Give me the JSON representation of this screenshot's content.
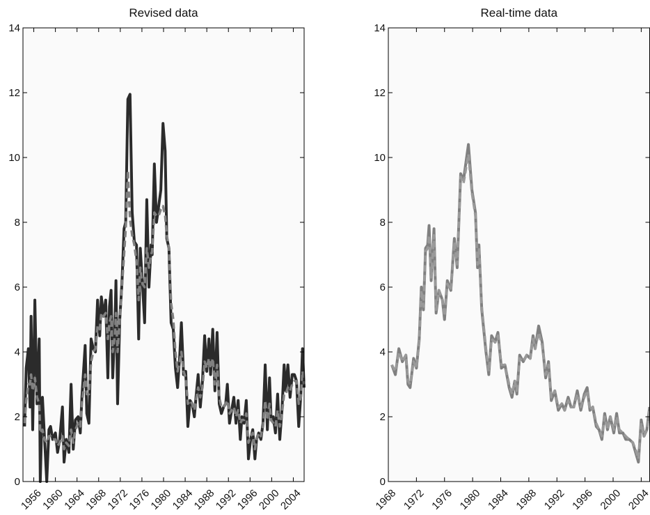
{
  "chart_data": [
    {
      "type": "line",
      "title": "Revised data",
      "x": [
        1954.3,
        1954.6,
        1955.0,
        1955.3,
        1955.5,
        1955.8,
        1956.2,
        1956.6,
        1957.0,
        1957.2,
        1957.6,
        1958.0,
        1958.4,
        1958.8,
        1959.1,
        1959.5,
        1960.0,
        1960.4,
        1960.8,
        1961.3,
        1961.6,
        1962.0,
        1962.5,
        1962.9,
        1963.3,
        1963.7,
        1964.2,
        1964.6,
        1964.9,
        1965.5,
        1965.8,
        1966.2,
        1966.6,
        1967.0,
        1967.4,
        1967.8,
        1968.2,
        1968.5,
        1968.9,
        1969.3,
        1969.7,
        1970.0,
        1970.3,
        1970.6,
        1971.0,
        1971.2,
        1971.5,
        1971.9,
        1972.3,
        1972.7,
        1973.0,
        1973.4,
        1973.8,
        1974.2,
        1974.6,
        1975.0,
        1975.4,
        1975.7,
        1976.1,
        1976.5,
        1976.9,
        1977.3,
        1977.7,
        1977.9,
        1978.3,
        1978.7,
        1979.1,
        1979.5,
        1979.9,
        1980.3,
        1980.6,
        1981.0,
        1981.4,
        1981.8,
        1982.2,
        1982.6,
        1983.0,
        1983.3,
        1983.7,
        1984.1,
        1984.5,
        1984.9,
        1985.3,
        1985.7,
        1986.0,
        1986.4,
        1986.8,
        1987.2,
        1987.6,
        1988.0,
        1988.4,
        1988.7,
        1989.1,
        1989.5,
        1989.9,
        1990.3,
        1990.7,
        1991.1,
        1991.5,
        1991.8,
        1992.2,
        1992.6,
        1993.0,
        1993.4,
        1993.8,
        1994.2,
        1994.5,
        1994.9,
        1995.3,
        1995.7,
        1996.1,
        1996.5,
        1996.9,
        1997.2,
        1997.6,
        1998.0,
        1998.4,
        1998.8,
        1999.2,
        1999.6,
        1999.9,
        2000.3,
        2000.7,
        2001.1,
        2001.5,
        2001.9,
        2002.3,
        2002.6,
        2003.0,
        2003.4,
        2003.8,
        2004.2,
        2004.6,
        2005.0,
        2005.4,
        2005.7,
        2006.0
      ],
      "series": [
        {
          "color": "#2b2b2b",
          "style": "solid",
          "values": [
            1.7,
            3.5,
            4.1,
            2.3,
            5.1,
            1.6,
            5.6,
            2.4,
            4.4,
            0.0,
            2.6,
            1.3,
            0.0,
            1.6,
            1.7,
            1.3,
            1.5,
            0.9,
            1.3,
            2.3,
            0.6,
            1.3,
            0.9,
            3.0,
            1.0,
            1.9,
            2.0,
            1.5,
            2.6,
            4.2,
            2.1,
            1.8,
            4.4,
            4.1,
            4.0,
            5.6,
            4.5,
            5.7,
            5.1,
            5.6,
            3.2,
            5.4,
            5.9,
            3.2,
            4.8,
            6.2,
            2.4,
            5.0,
            6.1,
            7.8,
            8.0,
            11.8,
            11.95,
            8.3,
            7.4,
            7.3,
            4.4,
            7.2,
            6.1,
            4.9,
            8.7,
            6.0,
            7.3,
            7.0,
            9.8,
            8.0,
            8.5,
            9.0,
            11.05,
            10.2,
            7.5,
            7.2,
            4.9,
            4.7,
            3.5,
            2.9,
            3.9,
            4.9,
            3.3,
            3.4,
            1.7,
            2.5,
            2.4,
            2.0,
            2.6,
            3.3,
            2.3,
            3.1,
            4.5,
            3.4,
            4.4,
            3.3,
            4.7,
            2.8,
            4.6,
            2.4,
            2.1,
            2.3,
            2.4,
            3.0,
            1.8,
            2.2,
            2.6,
            1.8,
            2.5,
            1.3,
            2.0,
            1.8,
            2.5,
            0.7,
            1.3,
            1.6,
            0.7,
            1.3,
            1.5,
            1.3,
            1.8,
            3.6,
            1.6,
            3.2,
            1.9,
            2.0,
            1.5,
            2.7,
            1.3,
            2.2,
            3.6,
            2.8,
            3.6,
            2.6,
            3.3,
            3.3,
            3.1,
            1.7,
            2.7,
            4.1,
            2.9
          ]
        },
        {
          "color": "#808080",
          "style": "dashed",
          "values": [
            1.8,
            2.5,
            3.0,
            3.0,
            3.3,
            2.8,
            3.2,
            2.6,
            2.4,
            1.5,
            1.6,
            1.3,
            1.2,
            1.4,
            1.4,
            1.3,
            1.3,
            1.1,
            1.2,
            1.4,
            1.0,
            1.2,
            1.1,
            1.6,
            1.2,
            1.6,
            1.8,
            1.7,
            2.4,
            3.3,
            2.7,
            2.7,
            3.7,
            4.0,
            4.1,
            4.8,
            4.7,
            5.2,
            5.1,
            5.2,
            4.4,
            4.9,
            5.1,
            4.0,
            4.5,
            5.2,
            4.0,
            5.0,
            6.0,
            7.0,
            7.8,
            9.6,
            8.1,
            7.6,
            7.3,
            6.8,
            5.6,
            6.6,
            6.1,
            6.0,
            7.2,
            6.6,
            7.0,
            7.1,
            8.3,
            8.2,
            8.2,
            8.4,
            8.5,
            8.2,
            7.6,
            7.2,
            5.5,
            5.0,
            4.0,
            3.4,
            3.7,
            4.0,
            3.4,
            3.2,
            2.4,
            2.5,
            2.4,
            2.2,
            2.5,
            2.9,
            2.6,
            2.9,
            3.7,
            3.5,
            3.8,
            3.5,
            3.8,
            3.0,
            3.6,
            2.6,
            2.3,
            2.3,
            2.4,
            2.5,
            2.1,
            2.2,
            2.3,
            2.0,
            2.2,
            1.8,
            1.9,
            1.9,
            2.1,
            1.2,
            1.4,
            1.5,
            1.0,
            1.3,
            1.5,
            1.4,
            1.7,
            2.5,
            1.9,
            2.4,
            1.9,
            1.8,
            1.7,
            2.2,
            1.7,
            2.1,
            2.7,
            2.7,
            2.9,
            2.8,
            3.0,
            3.1,
            3.1,
            2.4,
            2.6,
            3.4,
            3.0
          ]
        }
      ],
      "xlim": [
        1954,
        2006
      ],
      "xticks": [
        1956,
        1960,
        1964,
        1968,
        1972,
        1976,
        1980,
        1984,
        1988,
        1992,
        1996,
        2000,
        2004
      ],
      "ylim": [
        0,
        14
      ],
      "yticks": [
        0,
        2,
        4,
        6,
        8,
        10,
        12,
        14
      ]
    },
    {
      "type": "line",
      "title": "Real-time data",
      "x": [
        1968.5,
        1969.0,
        1969.5,
        1970.0,
        1970.5,
        1970.8,
        1971.1,
        1971.6,
        1972.0,
        1972.4,
        1972.7,
        1973.0,
        1973.3,
        1973.6,
        1973.8,
        1974.1,
        1974.5,
        1974.8,
        1975.2,
        1975.7,
        1976.0,
        1976.4,
        1976.9,
        1977.4,
        1977.8,
        1978.3,
        1978.7,
        1979.4,
        1979.9,
        1980.4,
        1980.7,
        1980.9,
        1981.3,
        1981.9,
        1982.3,
        1982.7,
        1983.2,
        1983.6,
        1984.1,
        1984.6,
        1985.2,
        1985.6,
        1986.0,
        1986.3,
        1986.7,
        1987.2,
        1987.7,
        1988.2,
        1988.6,
        1988.9,
        1989.4,
        1989.9,
        1990.4,
        1990.8,
        1991.2,
        1991.7,
        1992.2,
        1992.7,
        1993.1,
        1993.6,
        1994.0,
        1994.4,
        1994.9,
        1995.4,
        1995.9,
        1996.3,
        1996.7,
        1997.1,
        1997.6,
        1998.0,
        1998.4,
        1998.8,
        1999.2,
        1999.6,
        2000.1,
        2000.5,
        2000.9,
        2001.4,
        2001.8,
        2002.3,
        2002.8,
        2003.2,
        2003.6,
        2004.0,
        2004.4,
        2004.8,
        2005.2
      ],
      "series": [
        {
          "color": "#808080",
          "style": "solid",
          "values": [
            3.6,
            3.3,
            4.1,
            3.7,
            3.9,
            3.0,
            2.9,
            3.8,
            3.5,
            4.4,
            6.0,
            5.3,
            7.2,
            7.3,
            7.9,
            6.2,
            7.8,
            5.2,
            5.9,
            5.6,
            5.0,
            6.2,
            5.9,
            7.5,
            6.6,
            9.5,
            9.3,
            10.4,
            9.0,
            8.3,
            6.6,
            7.3,
            5.3,
            4.0,
            3.3,
            4.5,
            4.3,
            4.6,
            3.5,
            3.6,
            2.9,
            2.6,
            3.1,
            2.7,
            3.9,
            3.7,
            3.9,
            3.8,
            4.5,
            4.1,
            4.8,
            4.3,
            3.2,
            3.7,
            2.5,
            2.8,
            2.2,
            2.4,
            2.2,
            2.6,
            2.3,
            2.3,
            2.8,
            2.2,
            2.7,
            2.9,
            2.2,
            2.3,
            1.7,
            1.6,
            1.3,
            2.1,
            1.6,
            2.0,
            1.5,
            2.1,
            1.5,
            1.5,
            1.3,
            1.3,
            1.2,
            0.9,
            0.6,
            1.9,
            1.4,
            1.6,
            2.3
          ]
        },
        {
          "color": "#9a9a9a",
          "style": "dashed",
          "values": [
            3.6,
            3.4,
            4.0,
            3.7,
            3.9,
            3.1,
            3.0,
            3.7,
            3.5,
            4.3,
            5.9,
            5.4,
            7.1,
            7.2,
            7.6,
            6.3,
            7.6,
            5.3,
            5.9,
            5.6,
            5.1,
            6.1,
            5.9,
            7.4,
            6.7,
            9.4,
            9.2,
            10.1,
            8.9,
            8.2,
            6.7,
            7.2,
            5.4,
            4.1,
            3.4,
            4.4,
            4.3,
            4.5,
            3.6,
            3.6,
            3.0,
            2.7,
            3.1,
            2.8,
            3.8,
            3.7,
            3.9,
            3.8,
            4.4,
            4.1,
            4.6,
            4.2,
            3.3,
            3.6,
            2.6,
            2.8,
            2.3,
            2.4,
            2.2,
            2.5,
            2.3,
            2.3,
            2.7,
            2.3,
            2.6,
            2.8,
            2.2,
            2.3,
            1.8,
            1.6,
            1.4,
            2.0,
            1.6,
            2.0,
            1.6,
            2.0,
            1.6,
            1.5,
            1.4,
            1.3,
            1.2,
            1.0,
            0.7,
            1.8,
            1.4,
            1.6,
            2.2
          ]
        }
      ],
      "xlim": [
        1968,
        2005.2
      ],
      "xticks": [
        1968,
        1972,
        1976,
        1980,
        1984,
        1988,
        1992,
        1996,
        2000,
        2004
      ],
      "ylim": [
        0,
        14
      ],
      "yticks": [
        0,
        2,
        4,
        6,
        8,
        10,
        12,
        14
      ]
    }
  ]
}
